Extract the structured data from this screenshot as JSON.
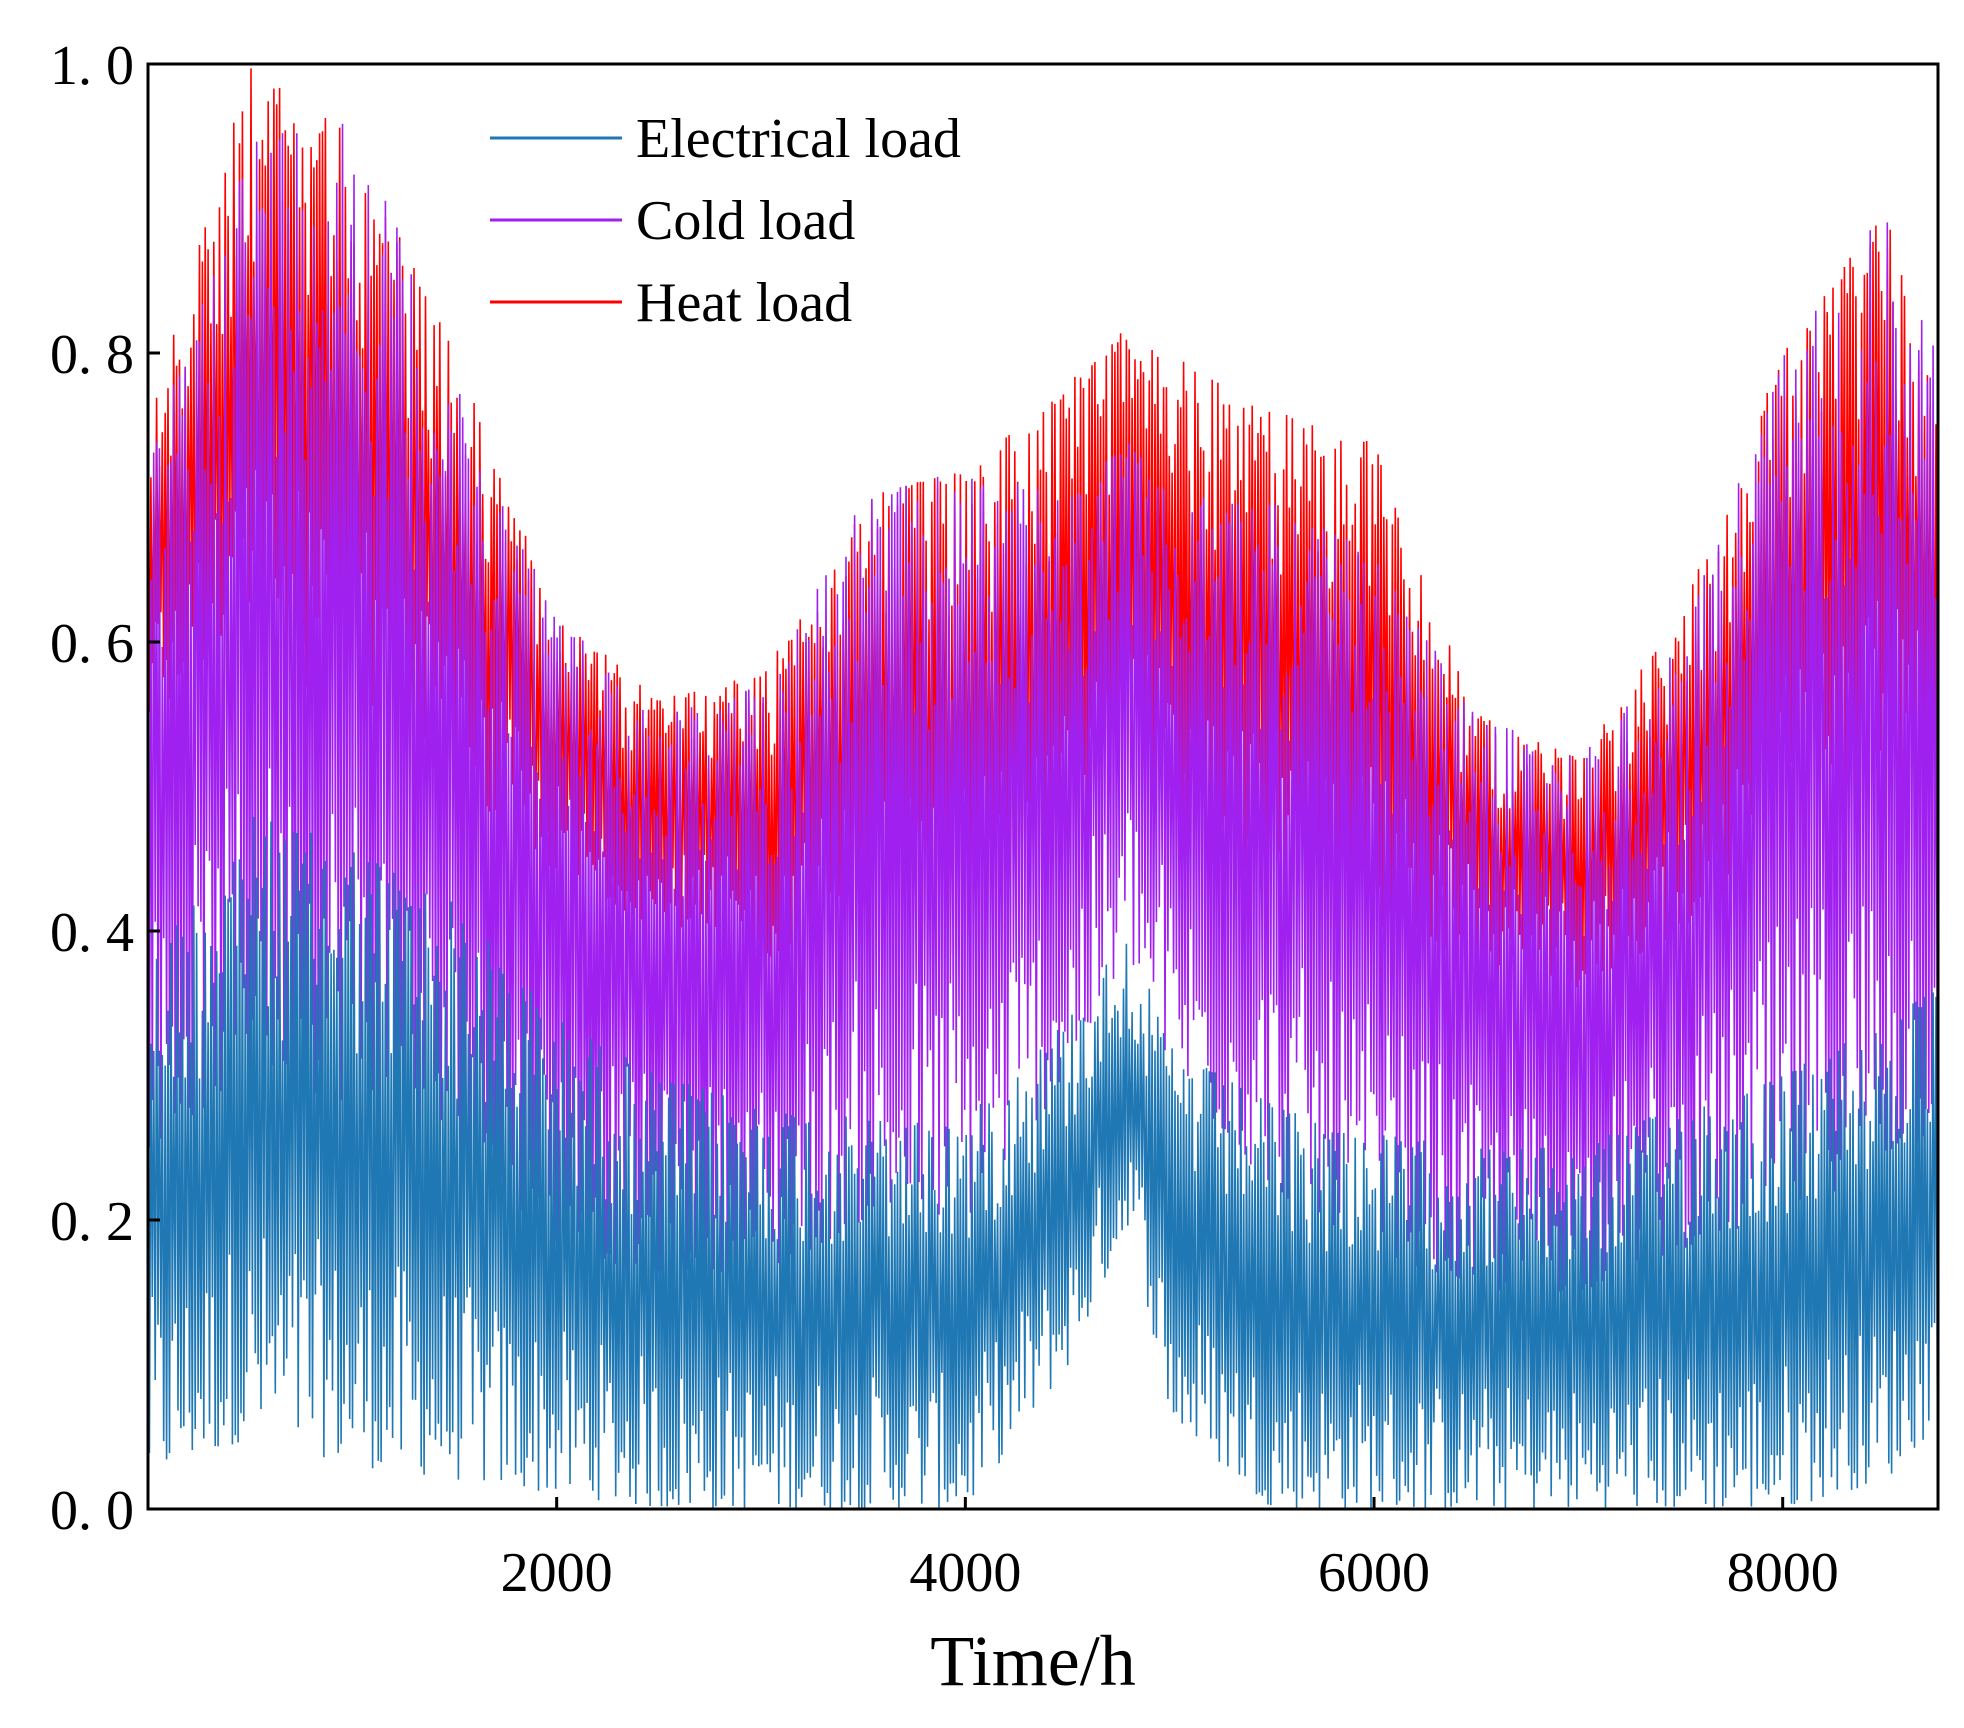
{
  "chart_data": {
    "type": "line",
    "title": "",
    "xlabel": "Time/h",
    "ylabel": "",
    "xlim": [
      0,
      8760
    ],
    "ylim": [
      0,
      1.0
    ],
    "x_ticks": [
      2000,
      4000,
      6000,
      8000
    ],
    "x_tick_labels": [
      "2000",
      "4000",
      "6000",
      "8000"
    ],
    "y_ticks": [
      0,
      0.2,
      0.4,
      0.6,
      0.8,
      1.0
    ],
    "y_tick_labels": [
      "0. 0",
      "0. 2",
      "0. 4",
      "0. 6",
      "0. 8",
      "1. 0"
    ],
    "grid": false,
    "legend_position": "top-left",
    "legend_labels": [
      "Electrical load",
      "Cold load",
      "Heat load"
    ],
    "series": [
      {
        "name": "Electrical load",
        "color": "#1f78b4",
        "envelope_x": [
          0,
          500,
          1000,
          1500,
          2000,
          2500,
          3000,
          3500,
          4000,
          4500,
          4800,
          5000,
          5500,
          6000,
          6500,
          7000,
          7500,
          8000,
          8500,
          8760
        ],
        "envelope_max": [
          0.38,
          0.48,
          0.46,
          0.42,
          0.34,
          0.3,
          0.28,
          0.27,
          0.27,
          0.34,
          0.4,
          0.32,
          0.28,
          0.26,
          0.25,
          0.25,
          0.28,
          0.3,
          0.34,
          0.36
        ],
        "envelope_min": [
          0.02,
          0.05,
          0.03,
          0.02,
          0.01,
          0.0,
          0.0,
          0.0,
          0.0,
          0.1,
          0.2,
          0.06,
          0.0,
          0.0,
          0.0,
          0.0,
          0.0,
          0.0,
          0.02,
          0.06
        ]
      },
      {
        "name": "Cold load",
        "color": "#a020f0",
        "envelope_x": [
          0,
          500,
          1000,
          1500,
          2000,
          2500,
          3000,
          3500,
          4000,
          4500,
          4800,
          5000,
          5500,
          6000,
          6500,
          7000,
          7500,
          8000,
          8500,
          8760
        ],
        "envelope_max": [
          0.72,
          0.95,
          0.97,
          0.78,
          0.62,
          0.55,
          0.57,
          0.7,
          0.72,
          0.7,
          0.74,
          0.7,
          0.7,
          0.66,
          0.55,
          0.52,
          0.6,
          0.8,
          0.9,
          0.8
        ],
        "envelope_min": [
          0.25,
          0.3,
          0.28,
          0.24,
          0.18,
          0.16,
          0.16,
          0.2,
          0.2,
          0.3,
          0.38,
          0.3,
          0.22,
          0.18,
          0.15,
          0.15,
          0.18,
          0.2,
          0.24,
          0.26
        ]
      },
      {
        "name": "Heat load",
        "color": "#ff0000",
        "envelope_x": [
          0,
          500,
          1000,
          1500,
          2000,
          2500,
          3000,
          3500,
          4000,
          4500,
          4800,
          5000,
          5500,
          6000,
          6500,
          7000,
          7500,
          8000,
          8500,
          8760
        ],
        "envelope_max": [
          0.75,
          1.0,
          0.95,
          0.8,
          0.62,
          0.56,
          0.58,
          0.7,
          0.72,
          0.78,
          0.82,
          0.8,
          0.76,
          0.74,
          0.55,
          0.52,
          0.62,
          0.8,
          0.9,
          0.76
        ],
        "envelope_min": [
          0.55,
          0.58,
          0.56,
          0.5,
          0.44,
          0.4,
          0.38,
          0.4,
          0.38,
          0.44,
          0.5,
          0.46,
          0.42,
          0.4,
          0.38,
          0.36,
          0.4,
          0.46,
          0.5,
          0.52
        ]
      }
    ]
  }
}
